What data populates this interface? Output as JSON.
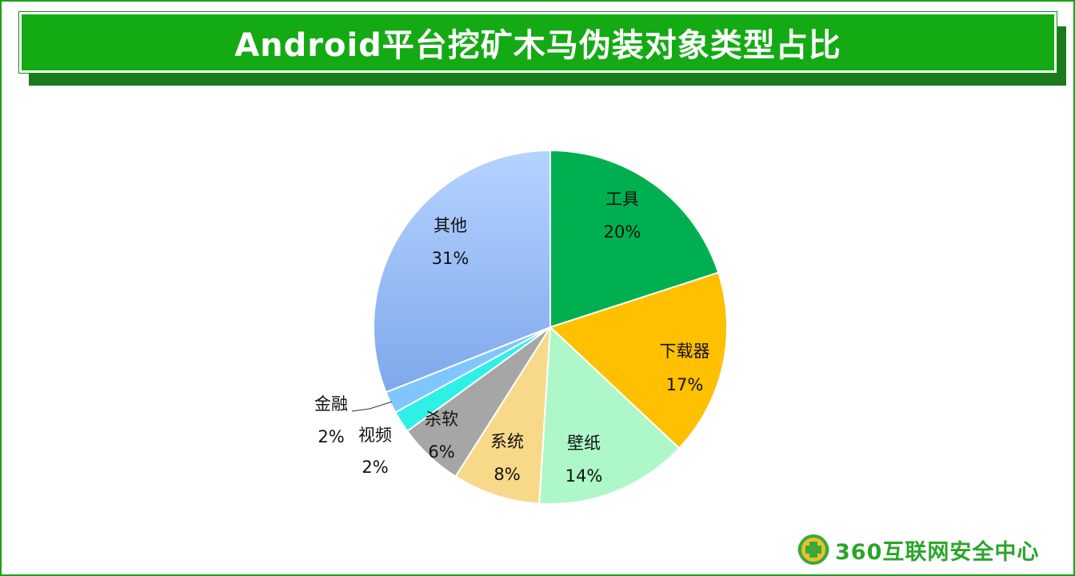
{
  "chart_data": {
    "type": "pie",
    "title": "Android平台挖矿木马伪装对象类型占比",
    "slices": [
      {
        "name": "工具",
        "value": 20,
        "label": "20%",
        "color": "#00b050"
      },
      {
        "name": "下载器",
        "value": 17,
        "label": "17%",
        "color": "#ffc000"
      },
      {
        "name": "壁纸",
        "value": 14,
        "label": "14%",
        "color": "#adf7c9"
      },
      {
        "name": "系统",
        "value": 8,
        "label": "8%",
        "color": "#f8d98a"
      },
      {
        "name": "杀软",
        "value": 6,
        "label": "6%",
        "color": "#a6a6a6"
      },
      {
        "name": "视频",
        "value": 2,
        "label": "2%",
        "color": "#2ff0e6"
      },
      {
        "name": "金融",
        "value": 2,
        "label": "2%",
        "color": "#7fc6ff"
      },
      {
        "name": "其他",
        "value": 31,
        "label": "31%",
        "color": "#8fb4f0"
      }
    ],
    "legend": "none"
  },
  "branding": {
    "text": "360互联网安全中心"
  }
}
